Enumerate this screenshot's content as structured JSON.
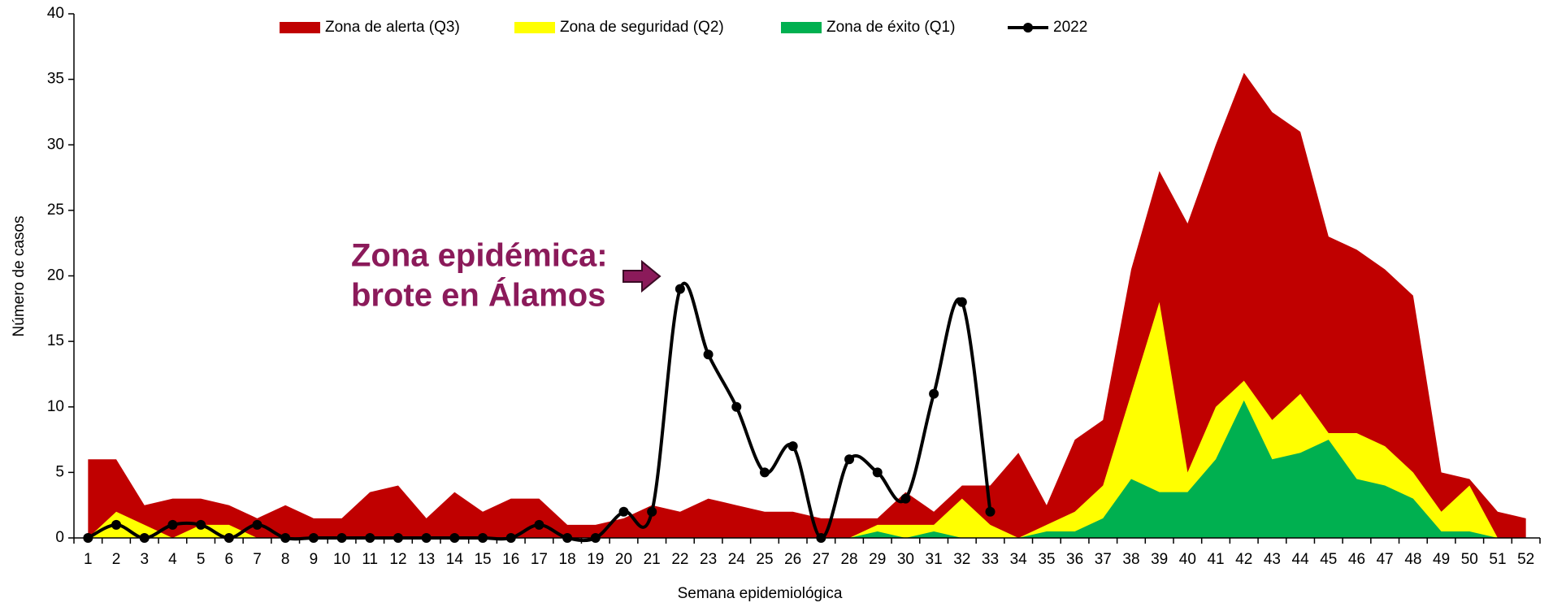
{
  "chart_data": {
    "type": "area",
    "x_label": "Semana epidemiológica",
    "y_label": "Número de casos",
    "annotation": [
      "Zona epidémica:",
      "brote en Álamos"
    ],
    "categories": [
      "1",
      "2",
      "3",
      "4",
      "5",
      "6",
      "7",
      "8",
      "9",
      "10",
      "11",
      "12",
      "13",
      "14",
      "15",
      "16",
      "17",
      "18",
      "19",
      "20",
      "21",
      "22",
      "23",
      "24",
      "25",
      "26",
      "27",
      "28",
      "29",
      "30",
      "31",
      "32",
      "33",
      "34",
      "35",
      "36",
      "37",
      "38",
      "39",
      "40",
      "41",
      "42",
      "43",
      "44",
      "45",
      "46",
      "47",
      "48",
      "49",
      "50",
      "51",
      "52"
    ],
    "ylim": [
      0,
      40
    ],
    "yticks": [
      0,
      5,
      10,
      15,
      20,
      25,
      30,
      35,
      40
    ],
    "series": [
      {
        "name": "Zona de alerta (Q3)",
        "type": "area",
        "color": "#c00000",
        "values": [
          6,
          6,
          2.5,
          3,
          3,
          2.5,
          1.5,
          2.5,
          1.5,
          1.5,
          3.5,
          4,
          1.5,
          3.5,
          2,
          3,
          3,
          1,
          1,
          1.5,
          2.5,
          2,
          3,
          2.5,
          2,
          2,
          1.5,
          1.5,
          1.5,
          3.5,
          2,
          4,
          4,
          6.5,
          2.5,
          7.5,
          9,
          20.5,
          28,
          24,
          30,
          35.5,
          32.5,
          31,
          23,
          22,
          20.5,
          18.5,
          5,
          4.5,
          2,
          1.5
        ]
      },
      {
        "name": "Zona de seguridad (Q2)",
        "type": "area",
        "color": "#ffff00",
        "values": [
          0,
          2,
          1,
          0,
          1,
          1,
          0,
          0,
          0,
          0,
          0,
          0,
          0,
          0,
          0,
          0,
          0,
          0,
          0,
          0,
          0,
          0,
          0,
          0,
          0,
          0,
          0,
          0,
          1,
          1,
          1,
          3,
          1,
          0,
          1,
          2,
          4,
          11,
          18,
          5,
          10,
          12,
          9,
          11,
          8,
          8,
          7,
          5,
          2,
          4,
          0,
          0
        ]
      },
      {
        "name": "Zona de éxito (Q1)",
        "type": "area",
        "color": "#00b050",
        "values": [
          0,
          0,
          0,
          0,
          0,
          0,
          0,
          0,
          0,
          0,
          0,
          0,
          0,
          0,
          0,
          0,
          0,
          0,
          0,
          0,
          0,
          0,
          0,
          0,
          0,
          0,
          0,
          0,
          0.5,
          0,
          0.5,
          0,
          0,
          0,
          0.5,
          0.5,
          1.5,
          4.5,
          3.5,
          3.5,
          6,
          10.5,
          6,
          6.5,
          7.5,
          4.5,
          4,
          3,
          0.5,
          0.5,
          0,
          0
        ]
      },
      {
        "name": "2022",
        "type": "line",
        "color": "#000000",
        "values": [
          0,
          1,
          0,
          1,
          1,
          0,
          1,
          0,
          0,
          0,
          0,
          0,
          0,
          0,
          0,
          0,
          1,
          0,
          0,
          2,
          2,
          19,
          14,
          10,
          5,
          7,
          0,
          6,
          5,
          3,
          11,
          18,
          2,
          null,
          null,
          null,
          null,
          null,
          null,
          null,
          null,
          null,
          null,
          null,
          null,
          null,
          null,
          null,
          null,
          null,
          null,
          null
        ]
      }
    ]
  }
}
